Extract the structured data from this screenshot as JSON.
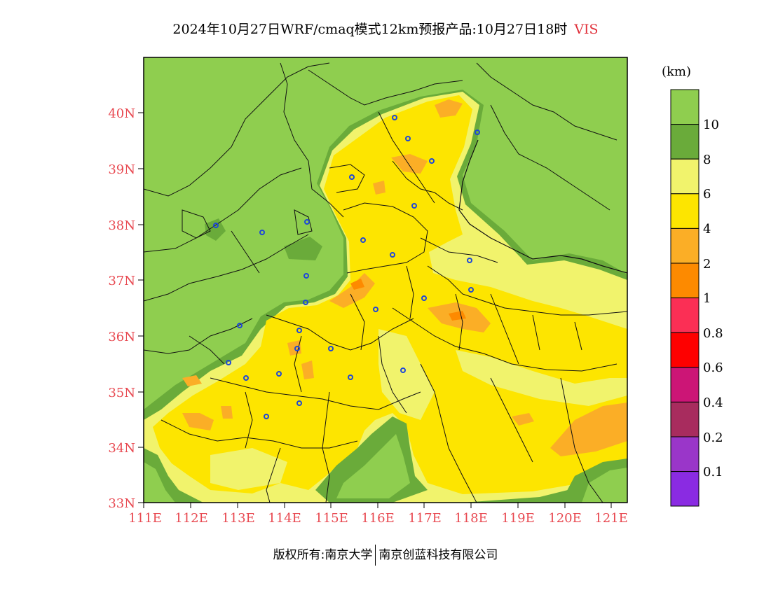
{
  "title": {
    "main": "2024年10月27日WRF/cmaq模式12km预报产品:10月27日18时",
    "variable": "VIS"
  },
  "map": {
    "lat_labels": [
      "40N",
      "39N",
      "38N",
      "37N",
      "36N",
      "35N",
      "34N",
      "33N"
    ],
    "lon_labels": [
      "111E",
      "112E",
      "113E",
      "114E",
      "115E",
      "116E",
      "117E",
      "118E",
      "119E",
      "120E",
      "121E"
    ],
    "colors": {
      "gt10": "#8fce4f",
      "8_10": "#6aab3a",
      "6_8": "#f1f36c",
      "4_6": "#fde500",
      "2_4": "#fbae26",
      "1_2": "#fd8a00",
      "0.8_1": "#fb2f55",
      "0.6_0.8": "#fe0000",
      "0.4_0.6": "#cc1576",
      "0.2_0.4": "#a82c5e",
      "0.1_0.2": "#9a36c9",
      "lt0.1": "#8a2be2",
      "station": "#1e48d8",
      "label": "#e84850"
    }
  },
  "colorbar": {
    "unit": "(km)",
    "labels": [
      "10",
      "8",
      "6",
      "4",
      "2",
      "1",
      "0.8",
      "0.6",
      "0.4",
      "0.2",
      "0.1"
    ]
  },
  "footer": {
    "left": "版权所有:南京大学",
    "right": "南京创蓝科技有限公司"
  }
}
